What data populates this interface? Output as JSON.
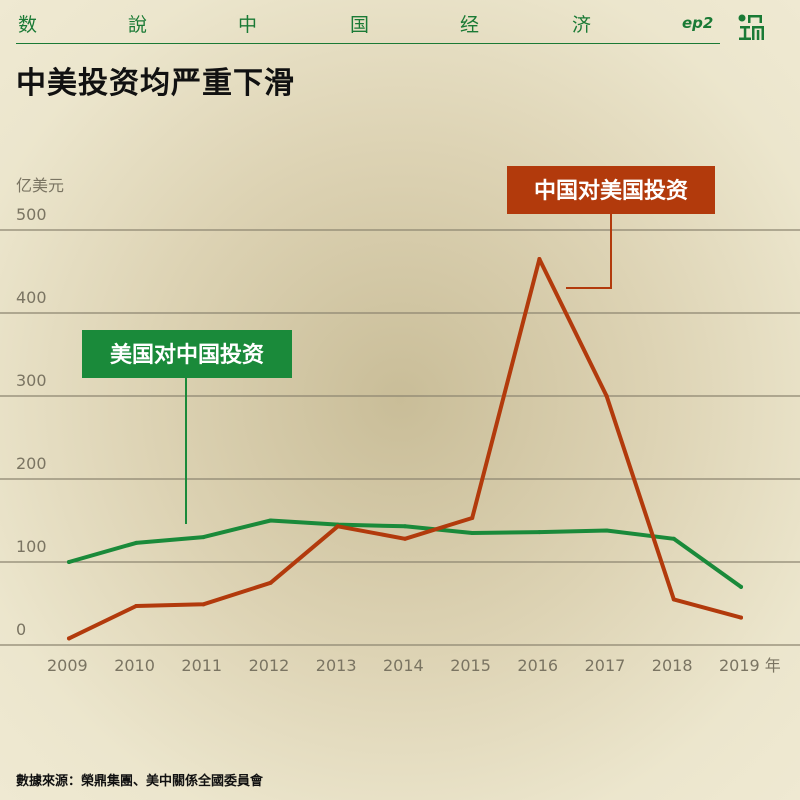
{
  "header": {
    "series_chars": [
      "数",
      "說",
      "中",
      "国",
      "经",
      "济"
    ],
    "episode": "ep2",
    "brand_color": "#1a7a35"
  },
  "title": "中美投资均严重下滑",
  "source": "數據來源：榮鼎集團、美中關係全國委員會",
  "chart_data": {
    "type": "line",
    "y_unit_label": "亿美元",
    "x": [
      "2009",
      "2010",
      "2011",
      "2012",
      "2013",
      "2014",
      "2015",
      "2016",
      "2017",
      "2018",
      "2019"
    ],
    "x_tick_labels": [
      "2009",
      "2010",
      "2011",
      "2012",
      "2013",
      "2014",
      "2015",
      "2016",
      "2017",
      "2018",
      "2019 年"
    ],
    "ylim": [
      0,
      500
    ],
    "y_ticks": [
      0,
      100,
      200,
      300,
      400,
      500
    ],
    "grid": true,
    "series": [
      {
        "name": "美国对中国投资",
        "color": "#1a8a3a",
        "values": [
          100,
          123,
          130,
          150,
          145,
          143,
          135,
          136,
          138,
          128,
          70
        ]
      },
      {
        "name": "中国对美国投资",
        "color": "#b23a0c",
        "values": [
          8,
          47,
          49,
          75,
          143,
          128,
          153,
          465,
          300,
          55,
          33
        ]
      }
    ]
  }
}
